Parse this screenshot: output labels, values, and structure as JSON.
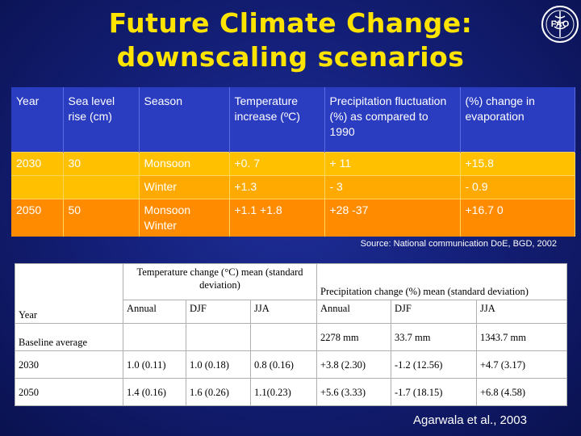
{
  "title": {
    "line1": "Future Climate Change:",
    "line2": "downscaling scenarios"
  },
  "logo": {
    "name": "fao-logo",
    "letters": "FAO",
    "tagline": "FIAT PANIS"
  },
  "table1": {
    "headers": [
      "Year",
      "Sea level rise  (cm)",
      "Season",
      "Temperature increase (ºC)",
      "Precipitation fluctuation (%) as compared to 1990",
      "(%) change in evaporation"
    ],
    "rows": [
      {
        "year": "2030",
        "sea": "30",
        "season": "Monsoon",
        "temp": "+0. 7",
        "precip": "+ 11",
        "evap": "+15.8"
      },
      {
        "year": "",
        "sea": "",
        "season": "Winter",
        "temp": "+1.3",
        "precip": "- 3",
        "evap": "- 0.9"
      },
      {
        "year": "2050",
        "sea": "50",
        "season": "Monsoon Winter",
        "temp": "+1.1 +1.8",
        "precip": "+28 -37",
        "evap": "+16.7 0"
      }
    ]
  },
  "source": "Source: National communication DoE, BGD, 2002",
  "table2": {
    "group_temp": "Temperature change (°C) mean (standard deviation)",
    "group_precip": "Precipitation change (%) mean (standard deviation)",
    "year_label": "Year",
    "cols": [
      "Annual",
      "DJF",
      "JJA",
      "Annual",
      "DJF",
      "JJA"
    ],
    "rows": [
      {
        "label": "Baseline average",
        "vals": [
          "",
          "",
          "",
          "2278 mm",
          "33.7 mm",
          "1343.7 mm"
        ]
      },
      {
        "label": "2030",
        "vals": [
          "1.0 (0.11)",
          "1.0 (0.18)",
          "0.8 (0.16)",
          "+3.8 (2.30)",
          "-1.2 (12.56)",
          "+4.7 (3.17)"
        ]
      },
      {
        "label": "2050",
        "vals": [
          "1.4 (0.16)",
          "1.6 (0.26)",
          "1.1(0.23)",
          "+5.6 (3.33)",
          "-1.7 (18.15)",
          "+6.8 (4.58)"
        ]
      }
    ]
  },
  "citation": "Agarwala et al., 2003"
}
